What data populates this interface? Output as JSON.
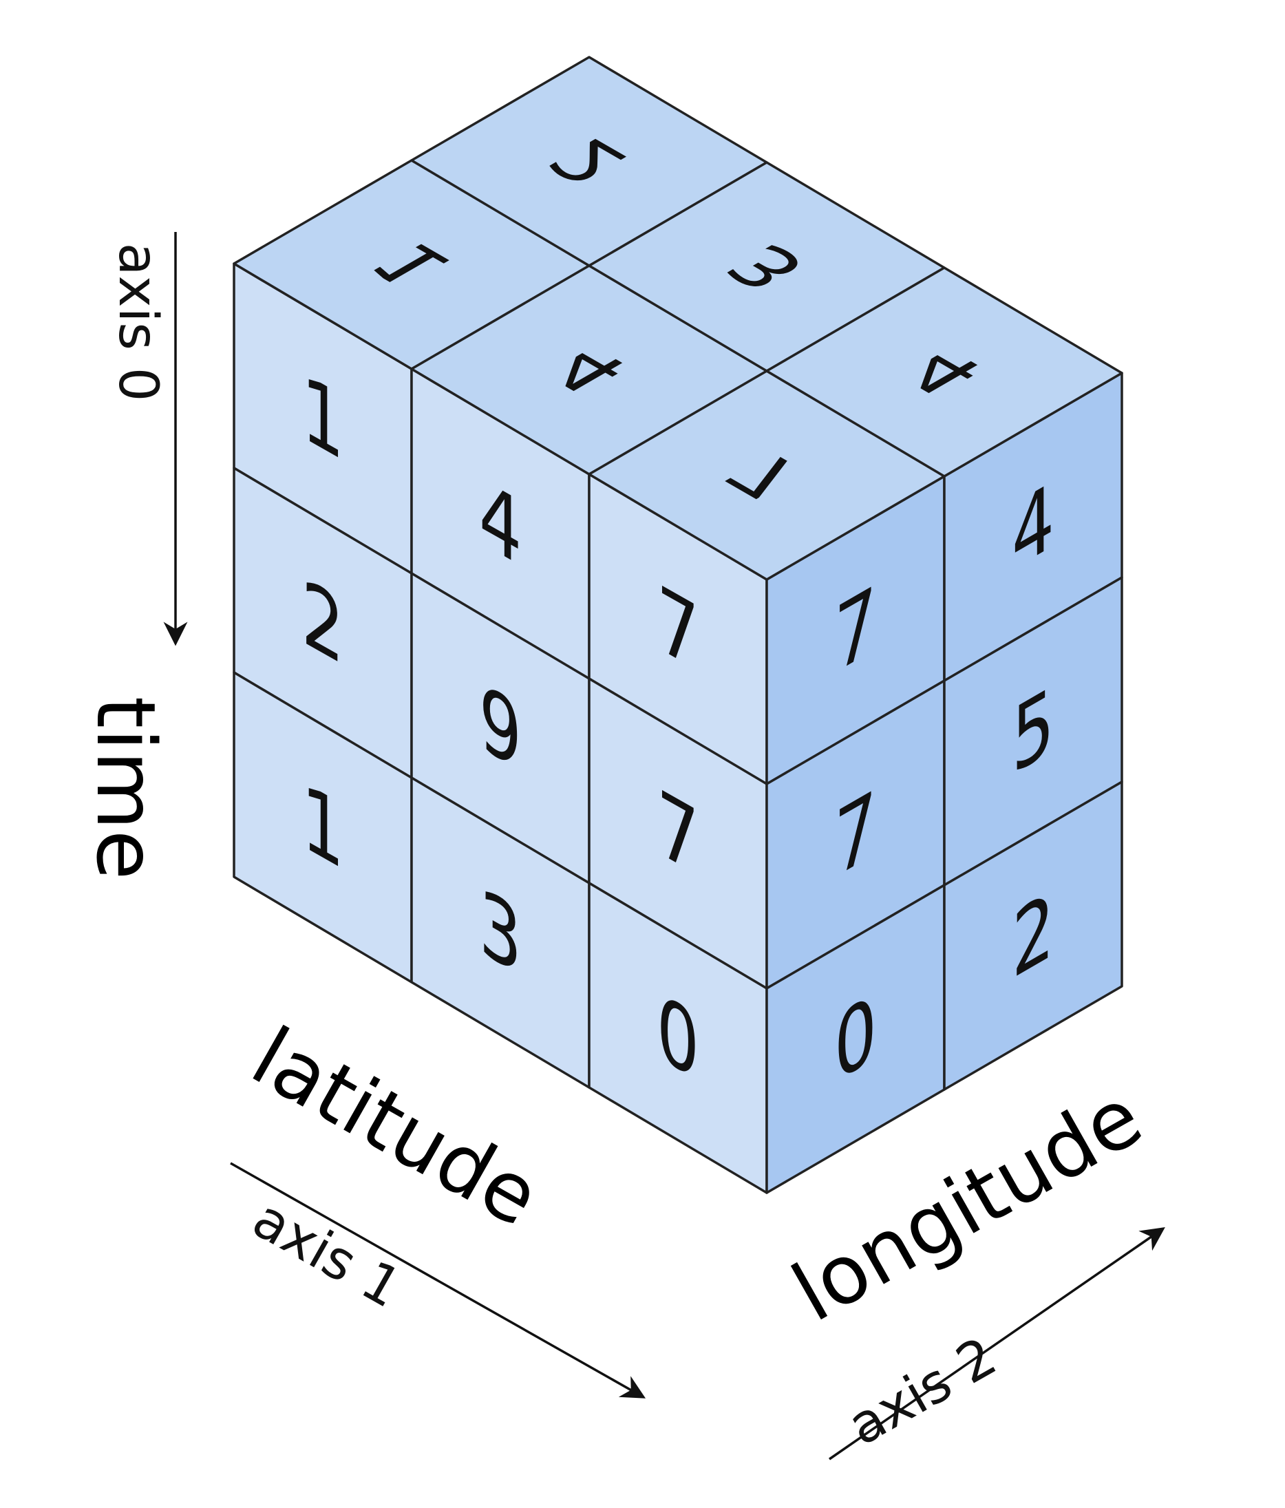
{
  "colors": {
    "front_face": "#cddff6",
    "right_face": "#a7c7f1",
    "top_face": "#bcd5f3",
    "edge": "#222222",
    "text": "#111111"
  },
  "cube": {
    "front_face": [
      [
        "1",
        "4",
        "7"
      ],
      [
        "2",
        "9",
        "7"
      ],
      [
        "1",
        "3",
        "0"
      ]
    ],
    "right_face": [
      [
        "7",
        "4"
      ],
      [
        "7",
        "5"
      ],
      [
        "0",
        "2"
      ]
    ],
    "top_face": [
      [
        "1",
        "2"
      ],
      [
        "4",
        "3"
      ],
      [
        "7",
        "4"
      ]
    ]
  },
  "labels": {
    "time": "time",
    "latitude": "latitude",
    "longitude": "longitude",
    "axis0": "axis 0",
    "axis1": "axis 1",
    "axis2": "axis 2"
  }
}
